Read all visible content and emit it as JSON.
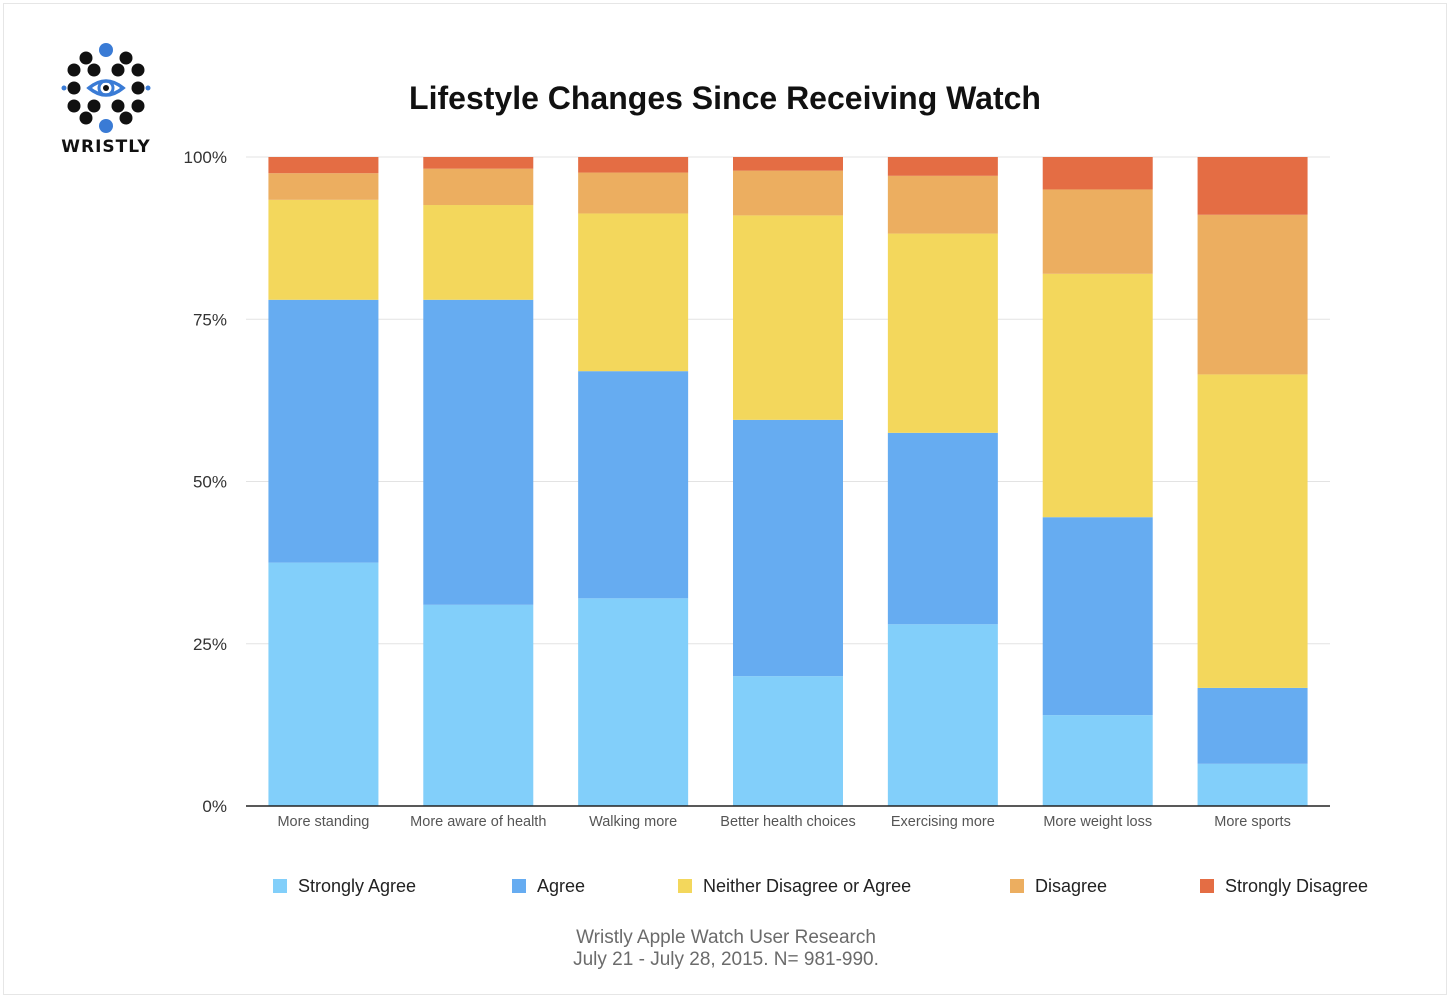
{
  "brand": {
    "name": "WRISTLY",
    "logo": "dotted-circle-eye-logo",
    "logo_dot_color": "#111111",
    "logo_accent_color": "#3a7bd5"
  },
  "chart_data": {
    "type": "bar",
    "stacked": true,
    "title": "Lifestyle Changes Since Receiving Watch",
    "xlabel": "",
    "ylabel": "",
    "ylim": [
      0,
      100
    ],
    "yticks": [
      "0%",
      "25%",
      "50%",
      "75%",
      "100%"
    ],
    "grid": true,
    "legend_position": "bottom",
    "categories": [
      "More standing",
      "More aware of health",
      "Walking more",
      "Better health choices",
      "Exercising more",
      "More weight loss",
      "More sports"
    ],
    "series": [
      {
        "name": "Strongly Agree",
        "color": "#82cffa",
        "values": [
          37.5,
          31,
          32,
          20,
          28,
          14,
          6.5
        ]
      },
      {
        "name": "Agree",
        "color": "#66acf1",
        "values": [
          40.5,
          47,
          35,
          39.5,
          29.5,
          30.5,
          11.7
        ]
      },
      {
        "name": "Neither Disagree or Agree",
        "color": "#f3d75c",
        "values": [
          15.4,
          14.6,
          24.3,
          31.5,
          30.7,
          37.5,
          48.3
        ]
      },
      {
        "name": "Disagree",
        "color": "#ecae60",
        "values": [
          4.1,
          5.6,
          6.3,
          6.9,
          8.9,
          13.0,
          24.6
        ]
      },
      {
        "name": "Strongly Disagree",
        "color": "#e46d44",
        "values": [
          2.5,
          1.8,
          2.4,
          2.1,
          2.9,
          5.0,
          8.9
        ]
      }
    ]
  },
  "footer": {
    "line1": "Wristly Apple Watch User Research",
    "line2": "July 21 - July 28, 2015.  N= 981-990."
  }
}
